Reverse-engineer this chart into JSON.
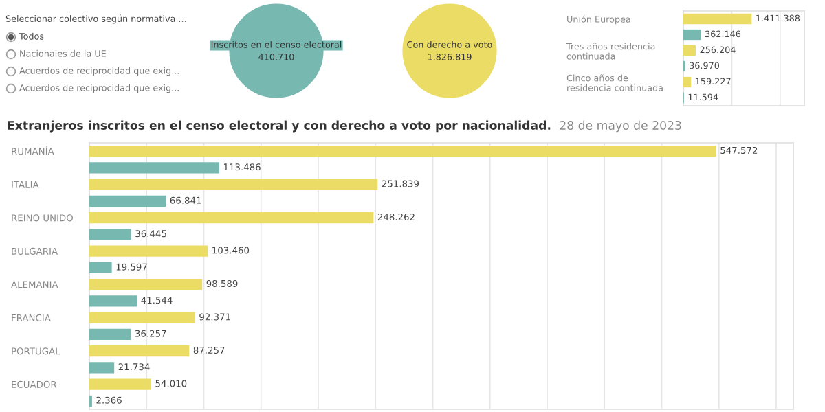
{
  "chart_data": [
    {
      "type": "other",
      "title": "Seleccionar colectivo según normativa ...",
      "categories": [
        "Todos",
        "Nacionales de la UE",
        "Acuerdos de reciprocidad que exig...",
        "Acuerdos de reciprocidad que exig..."
      ]
    },
    {
      "type": "other",
      "categories": [
        "Inscritos en el censo electoral",
        "Con derecho a voto"
      ],
      "value_labels": [
        "410.710",
        "1.826.819"
      ],
      "colors": [
        "#77b8b1",
        "#ebdc66"
      ]
    },
    {
      "type": "bar",
      "orientation": "horizontal",
      "categories": [
        "Unión Europea",
        "Tres años residencia\ncontinuada",
        "Cinco años de\nresidencia continuada"
      ],
      "series": [
        {
          "color": "#ebdc66",
          "values": [
            1411388,
            256204,
            159227
          ],
          "value_labels": [
            "1.411.388",
            "256.204",
            "159.227"
          ]
        },
        {
          "color": "#77b8b1",
          "values": [
            362146,
            36970,
            11594
          ],
          "value_labels": [
            "362.146",
            "36.970",
            "11.594"
          ]
        }
      ],
      "xlim": [
        0,
        2500000
      ],
      "xticks": [
        {
          "value": 0,
          "label": null
        },
        {
          "value": 1000000,
          "label": null
        },
        {
          "value": 2000000,
          "label": null
        }
      ],
      "grid": "x",
      "tick_labels": "y"
    },
    {
      "type": "bar",
      "orientation": "horizontal",
      "title": "Extranjeros inscritos en el censo electoral y con derecho a voto por nacionalidad.",
      "subtitle": "28 de mayo de 2023",
      "categories": [
        "RUMANÍA",
        "ITALIA",
        "REINO UNIDO",
        "BULGARIA",
        "ALEMANIA",
        "FRANCIA",
        "PORTUGAL",
        "ECUADOR"
      ],
      "series": [
        {
          "color": "#ebdc66",
          "values": [
            547572,
            251839,
            248262,
            103460,
            98589,
            92371,
            87257,
            54010
          ],
          "value_labels": [
            "547.572",
            "251.839",
            "248.262",
            "103.460",
            "98.589",
            "92.371",
            "87.257",
            "54.010"
          ]
        },
        {
          "color": "#77b8b1",
          "values": [
            113486,
            66841,
            36445,
            19597,
            41544,
            36257,
            21734,
            2366
          ],
          "value_labels": [
            "113.486",
            "66.841",
            "36.445",
            "19.597",
            "41.544",
            "36.257",
            "21.734",
            "2.366"
          ]
        }
      ],
      "xlim": [
        0,
        615000
      ],
      "xticks": [
        {
          "value": 0,
          "label": null
        },
        {
          "value": 50000,
          "label": null
        },
        {
          "value": 100000,
          "label": null
        },
        {
          "value": 150000,
          "label": null
        },
        {
          "value": 200000,
          "label": null
        },
        {
          "value": 250000,
          "label": null
        },
        {
          "value": 300000,
          "label": null
        },
        {
          "value": 350000,
          "label": null
        },
        {
          "value": 400000,
          "label": null
        },
        {
          "value": 450000,
          "label": null
        },
        {
          "value": 500000,
          "label": null
        },
        {
          "value": 550000,
          "label": null
        },
        {
          "value": 600000,
          "label": null
        }
      ],
      "grid": "x",
      "tick_labels": "y"
    }
  ]
}
